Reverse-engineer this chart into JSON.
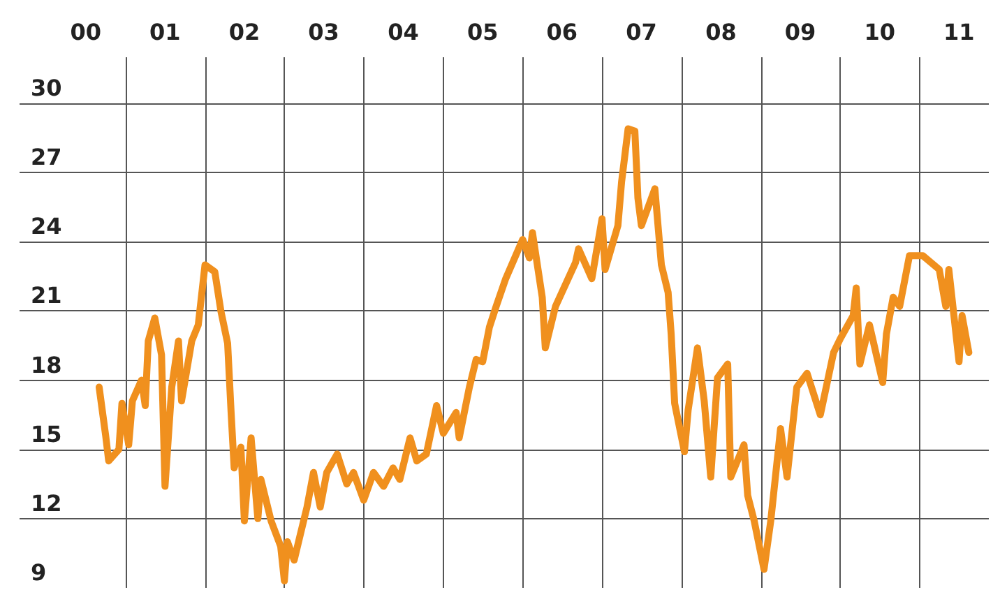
{
  "chart_data": {
    "type": "line",
    "x": [
      "2000-09-01",
      "2000-10-01",
      "2000-10-15",
      "2000-12-01",
      "2000-12-15",
      "2001-01-15",
      "2001-02-01",
      "2001-03-15",
      "2001-04-01",
      "2001-04-15",
      "2001-05-15",
      "2001-06-15",
      "2001-07-01",
      "2001-08-01",
      "2001-09-01",
      "2001-09-15",
      "2001-11-01",
      "2001-12-01",
      "2002-01-01",
      "2002-02-15",
      "2002-03-15",
      "2002-04-15",
      "2002-05-01",
      "2002-05-15",
      "2002-06-15",
      "2002-07-01",
      "2002-08-01",
      "2002-09-01",
      "2002-09-15",
      "2002-11-01",
      "2002-12-15",
      "2003-01-01",
      "2003-01-15",
      "2003-02-15",
      "2003-03-15",
      "2003-04-15",
      "2003-05-15",
      "2003-06-15",
      "2003-07-15",
      "2003-09-01",
      "2003-10-15",
      "2003-11-15",
      "2004-01-01",
      "2004-02-15",
      "2004-04-01",
      "2004-05-15",
      "2004-06-15",
      "2004-08-01",
      "2004-09-01",
      "2004-10-15",
      "2004-12-01",
      "2005-01-01",
      "2005-03-01",
      "2005-03-15",
      "2005-05-01",
      "2005-06-01",
      "2005-07-01",
      "2005-08-01",
      "2005-09-01",
      "2005-10-15",
      "2006-01-01",
      "2006-02-01",
      "2006-02-15",
      "2006-04-01",
      "2006-04-15",
      "2006-06-01",
      "2006-09-01",
      "2006-09-15",
      "2006-11-15",
      "2007-01-01",
      "2007-01-15",
      "2007-03-15",
      "2007-04-01",
      "2007-05-01",
      "2007-06-01",
      "2007-06-15",
      "2007-07-01",
      "2007-09-01",
      "2007-10-01",
      "2007-11-01",
      "2007-11-15",
      "2007-12-01",
      "2008-01-15",
      "2008-02-01",
      "2008-03-15",
      "2008-04-15",
      "2008-05-15",
      "2008-06-15",
      "2008-08-01",
      "2008-08-15",
      "2008-10-15",
      "2008-11-01",
      "2008-12-01",
      "2009-01-15",
      "2009-02-15",
      "2009-04-01",
      "2009-05-01",
      "2009-06-15",
      "2009-08-01",
      "2009-10-01",
      "2009-12-01",
      "2010-01-01",
      "2010-03-01",
      "2010-03-15",
      "2010-04-01",
      "2010-05-15",
      "2010-07-15",
      "2010-08-01",
      "2010-09-01",
      "2010-10-01",
      "2010-11-15",
      "2011-01-15",
      "2011-04-01",
      "2011-05-01",
      "2011-05-15",
      "2011-07-01",
      "2011-07-15",
      "2011-08-15"
    ],
    "series": [
      {
        "color": "#f0901e",
        "values": [
          17.7,
          15.6,
          14.5,
          15.0,
          17.0,
          15.2,
          17.1,
          18.0,
          16.9,
          19.7,
          20.7,
          19.1,
          13.4,
          17.7,
          19.7,
          17.1,
          19.7,
          20.4,
          23.0,
          22.7,
          21.0,
          19.6,
          16.6,
          14.2,
          15.1,
          11.9,
          15.5,
          12.0,
          13.7,
          11.9,
          10.8,
          9.3,
          11.0,
          10.2,
          11.3,
          12.5,
          14.0,
          12.5,
          14.0,
          14.8,
          13.5,
          14.0,
          12.8,
          14.0,
          13.4,
          14.2,
          13.7,
          15.5,
          14.5,
          14.8,
          16.9,
          15.7,
          16.6,
          15.5,
          17.7,
          18.9,
          18.8,
          20.3,
          21.2,
          22.4,
          24.1,
          23.3,
          24.4,
          21.6,
          19.4,
          21.2,
          23.1,
          23.7,
          22.4,
          25.0,
          22.8,
          24.7,
          26.6,
          28.9,
          28.8,
          25.9,
          24.7,
          26.3,
          23.0,
          21.8,
          20.0,
          17.0,
          14.9,
          16.7,
          19.4,
          17.1,
          13.8,
          18.1,
          18.7,
          13.8,
          15.2,
          13.0,
          11.9,
          9.8,
          11.9,
          15.9,
          13.8,
          17.7,
          18.3,
          16.5,
          19.2,
          19.8,
          20.8,
          22.0,
          18.7,
          20.4,
          17.9,
          20.0,
          21.6,
          21.2,
          23.4,
          23.4,
          22.8,
          21.2,
          22.8,
          18.8,
          20.8,
          19.2
        ]
      }
    ],
    "xlim": [
      "1999-09-01",
      "2011-11-15"
    ],
    "xticks": [
      {
        "value": "2000-07-01",
        "label": "00"
      },
      {
        "value": "2001-07-01",
        "label": "01"
      },
      {
        "value": "2002-07-01",
        "label": "02"
      },
      {
        "value": "2003-07-01",
        "label": "03"
      },
      {
        "value": "2004-07-01",
        "label": "04"
      },
      {
        "value": "2005-07-01",
        "label": "05"
      },
      {
        "value": "2006-07-01",
        "label": "06"
      },
      {
        "value": "2007-07-01",
        "label": "07"
      },
      {
        "value": "2008-07-01",
        "label": "08"
      },
      {
        "value": "2009-07-01",
        "label": "09"
      },
      {
        "value": "2010-07-01",
        "label": "10"
      },
      {
        "value": "2011-07-01",
        "label": "11"
      },
      {
        "value": "2001-01-01",
        "label": null
      },
      {
        "value": "2002-01-01",
        "label": null
      },
      {
        "value": "2003-01-01",
        "label": null
      },
      {
        "value": "2004-01-01",
        "label": null
      },
      {
        "value": "2005-01-01",
        "label": null
      },
      {
        "value": "2006-01-01",
        "label": null
      },
      {
        "value": "2007-01-01",
        "label": null
      },
      {
        "value": "2008-01-01",
        "label": null
      },
      {
        "value": "2009-01-01",
        "label": null
      },
      {
        "value": "2010-01-01",
        "label": null
      },
      {
        "value": "2011-01-01",
        "label": null
      }
    ],
    "ylim": [
      9,
      32
    ],
    "yticks": [
      9,
      12,
      15,
      18,
      21,
      24,
      27,
      30
    ],
    "grid": true,
    "marker": "none",
    "line_style": "solid"
  }
}
